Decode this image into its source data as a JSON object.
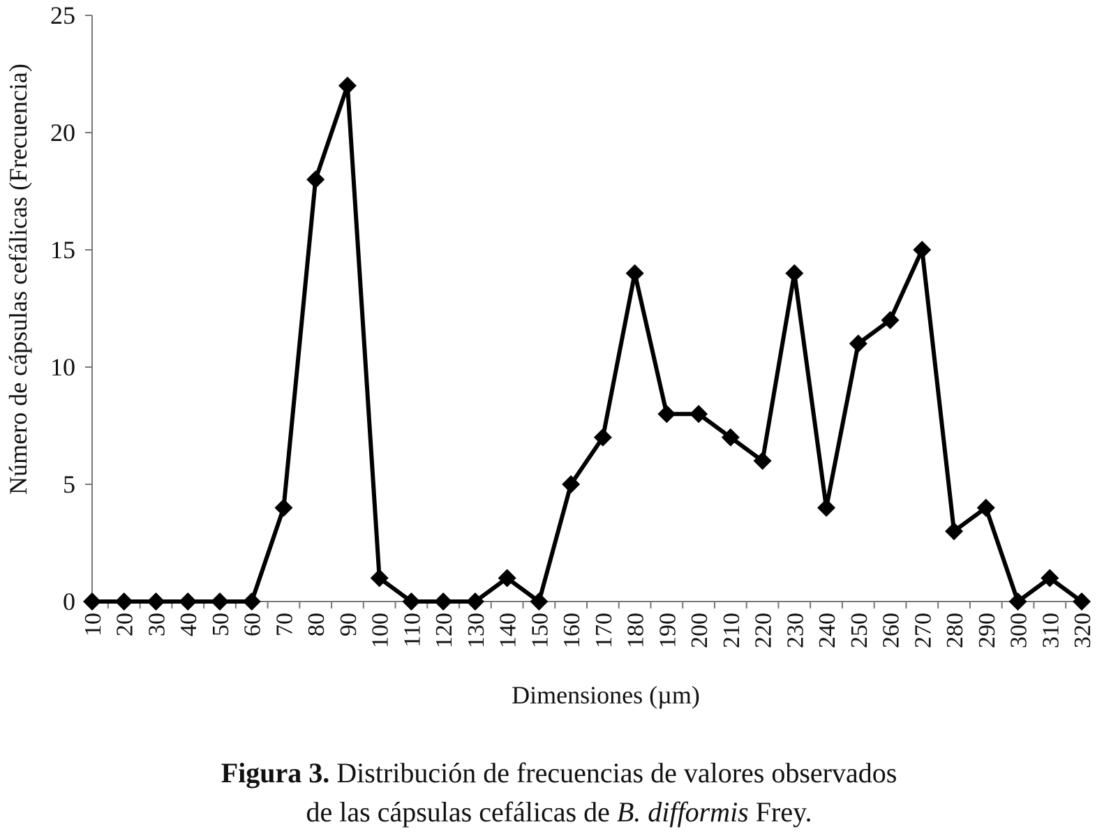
{
  "chart_data": {
    "type": "line",
    "xlabel": "Dimensiones (µm)",
    "ylabel": "Número de cápsulas cefálicas (Frecuencia)",
    "ylim": [
      0,
      25
    ],
    "yticks": [
      0,
      5,
      10,
      15,
      20,
      25
    ],
    "x": [
      10,
      20,
      30,
      40,
      50,
      60,
      70,
      80,
      90,
      100,
      110,
      120,
      130,
      140,
      150,
      160,
      170,
      180,
      190,
      200,
      210,
      220,
      230,
      240,
      250,
      260,
      270,
      280,
      290,
      300,
      310,
      320
    ],
    "values": [
      0,
      0,
      0,
      0,
      0,
      0,
      4,
      18,
      22,
      1,
      0,
      0,
      0,
      1,
      0,
      5,
      7,
      14,
      8,
      8,
      7,
      6,
      14,
      4,
      11,
      12,
      15,
      3,
      4,
      0,
      1,
      0
    ],
    "marker": "diamond",
    "line_color": "#000000",
    "grid": false,
    "legend": false
  },
  "caption": {
    "label": "Figura 3.",
    "line1": " Distribución de frecuencias de valores observados",
    "line2_start": "de las cápsulas cefálicas de ",
    "species": "B. difformis",
    "line2_end": " Frey."
  }
}
